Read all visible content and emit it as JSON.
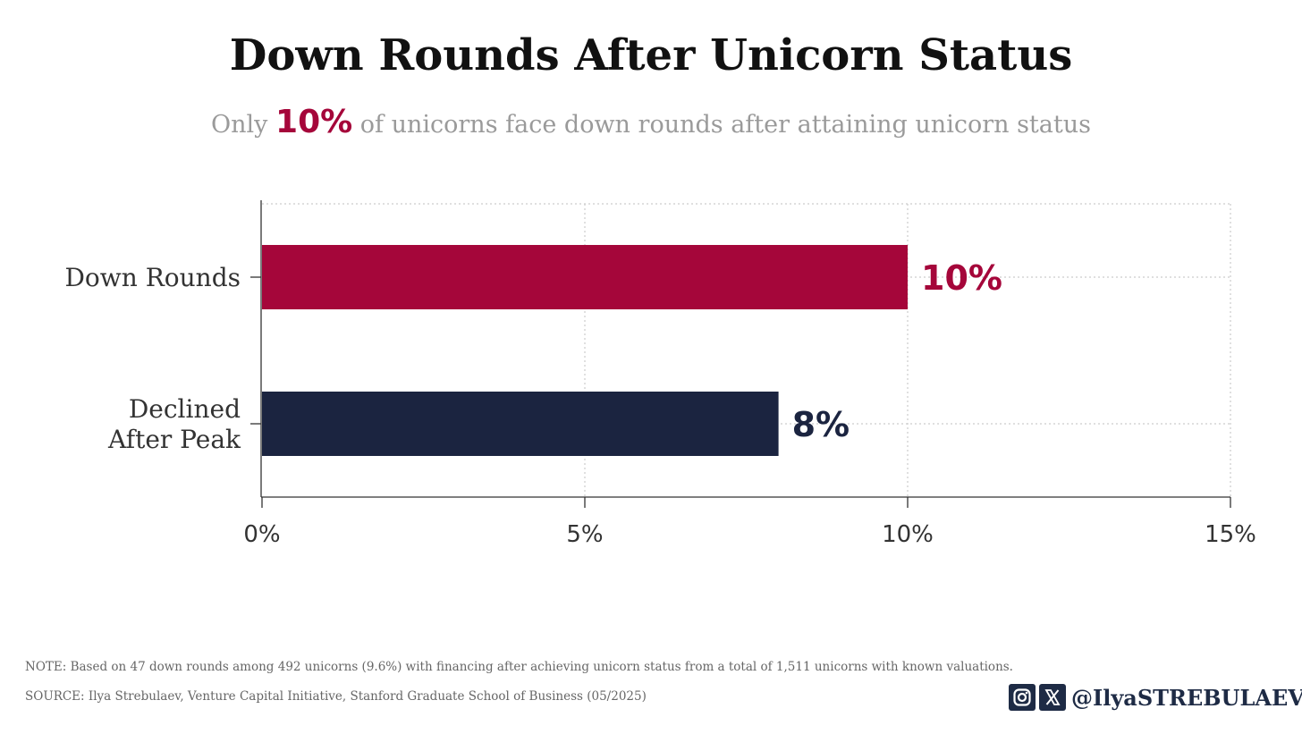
{
  "header": {
    "title": "Down Rounds After Unicorn Status",
    "subtitle_prefix": "Only",
    "subtitle_highlight": "10%",
    "subtitle_suffix": "of unicorns face down rounds after attaining unicorn status"
  },
  "chart_data": {
    "type": "bar",
    "orientation": "horizontal",
    "categories": [
      [
        "Down Rounds"
      ],
      [
        "Declined",
        "After Peak"
      ]
    ],
    "values": [
      10,
      8
    ],
    "data_labels": [
      "10%",
      "8%"
    ],
    "bar_colors": [
      "#a5063a",
      "#1b2440"
    ],
    "xlim": [
      0,
      15
    ],
    "xticks": [
      0,
      5,
      10,
      15
    ],
    "xtick_labels": [
      "0%",
      "5%",
      "10%",
      "15%"
    ],
    "grid": true,
    "xlabel": "",
    "ylabel": ""
  },
  "footer": {
    "note": "NOTE: Based on 47 down rounds among 492 unicorns (9.6%) with financing after achieving unicorn status from a total of 1,511 unicorns with known valuations.",
    "source": "SOURCE: Ilya Strebulaev, Venture Capital Initiative, Stanford Graduate School of Business (05/2025)",
    "handle": "@IlyaSTREBULAEV",
    "icons": [
      "instagram-icon",
      "x-icon"
    ]
  },
  "colors": {
    "accent": "#a5063a",
    "navy": "#1b2440",
    "brand": "#1e2b45"
  }
}
